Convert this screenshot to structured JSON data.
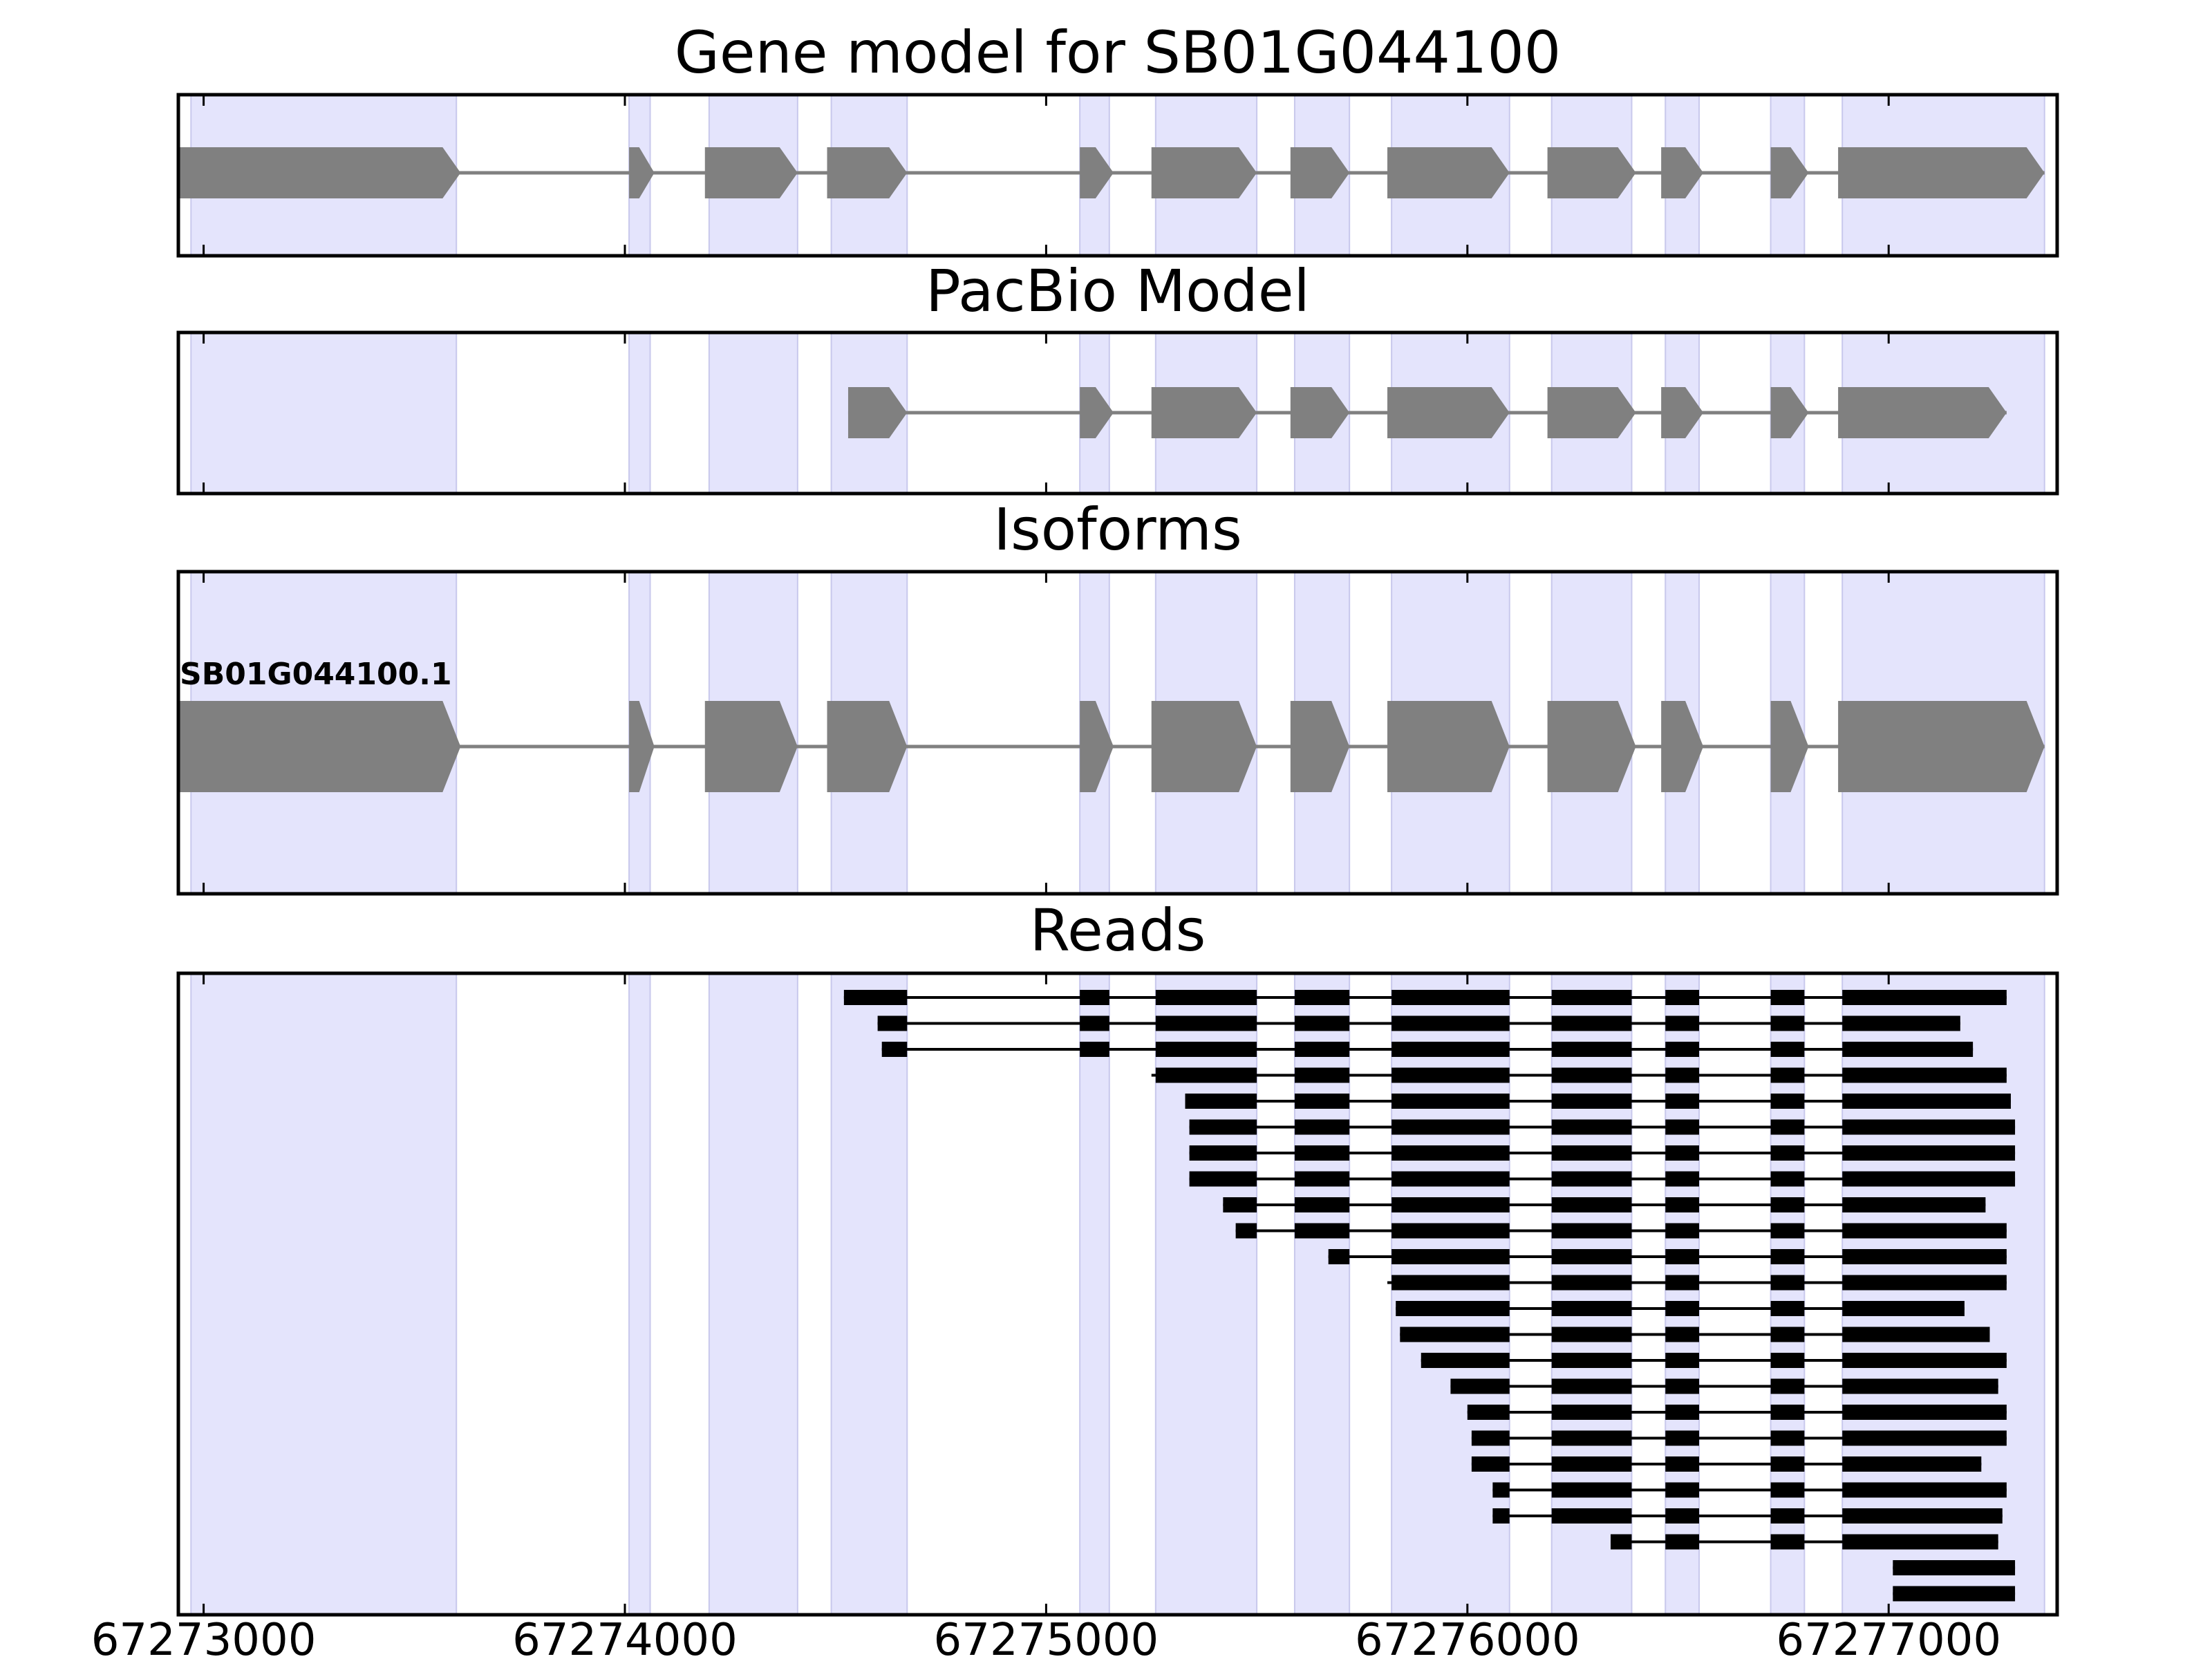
{
  "figure": {
    "x_axis": {
      "xlim": [
        67272940,
        67277400
      ],
      "ticks": [
        67273000,
        67274000,
        67275000,
        67276000,
        67277000
      ],
      "tick_labels": [
        "67273000",
        "67274000",
        "67275000",
        "67276000",
        "67277000"
      ]
    },
    "colors": {
      "exon_shade": "#e4e4fc",
      "exon_shade_edge": "#c8c8ec",
      "gene_model": "#808080",
      "read": "#000000",
      "frame": "#000000"
    },
    "exon_regions": [
      [
        67272970,
        67273600
      ],
      [
        67274010,
        67274060
      ],
      [
        67274200,
        67274410
      ],
      [
        67274490,
        67274670
      ],
      [
        67275080,
        67275150
      ],
      [
        67275260,
        67275500
      ],
      [
        67275590,
        67275720
      ],
      [
        67275820,
        67276100
      ],
      [
        67276200,
        67276390
      ],
      [
        67276470,
        67276550
      ],
      [
        67276720,
        67276800
      ],
      [
        67276890,
        67277370
      ]
    ],
    "panels": [
      {
        "key": "gene_model",
        "title": "Gene model for SB01G044100",
        "label": "",
        "exons": [
          [
            67272940,
            67273610
          ],
          [
            67274010,
            67274070
          ],
          [
            67274190,
            67274410
          ],
          [
            67274480,
            67274670
          ],
          [
            67275080,
            67275160
          ],
          [
            67275250,
            67275500
          ],
          [
            67275580,
            67275720
          ],
          [
            67275810,
            67276100
          ],
          [
            67276190,
            67276400
          ],
          [
            67276460,
            67276560
          ],
          [
            67276720,
            67276810
          ],
          [
            67276880,
            67277370
          ]
        ]
      },
      {
        "key": "pacbio_model",
        "title": "PacBio Model",
        "label": "",
        "exons": [
          [
            67274530,
            67274670
          ],
          [
            67275080,
            67275160
          ],
          [
            67275250,
            67275500
          ],
          [
            67275580,
            67275720
          ],
          [
            67275810,
            67276100
          ],
          [
            67276190,
            67276400
          ],
          [
            67276460,
            67276560
          ],
          [
            67276720,
            67276810
          ],
          [
            67276880,
            67277280
          ]
        ]
      },
      {
        "key": "isoforms",
        "title": "Isoforms",
        "label": "SB01G044100.1",
        "exons": [
          [
            67272940,
            67273610
          ],
          [
            67274010,
            67274070
          ],
          [
            67274190,
            67274410
          ],
          [
            67274480,
            67274670
          ],
          [
            67275080,
            67275160
          ],
          [
            67275250,
            67275500
          ],
          [
            67275580,
            67275720
          ],
          [
            67275810,
            67276100
          ],
          [
            67276190,
            67276400
          ],
          [
            67276460,
            67276560
          ],
          [
            67276720,
            67276810
          ],
          [
            67276880,
            67277370
          ]
        ]
      },
      {
        "key": "reads",
        "title": "Reads",
        "label": ""
      }
    ],
    "reads": [
      {
        "start": 67274520,
        "end": 67277280
      },
      {
        "start": 67274600,
        "end": 67277170
      },
      {
        "start": 67274610,
        "end": 67277200
      },
      {
        "start": 67275250,
        "end": 67277280
      },
      {
        "start": 67275330,
        "end": 67277290
      },
      {
        "start": 67275340,
        "end": 67277300
      },
      {
        "start": 67275340,
        "end": 67277300
      },
      {
        "start": 67275340,
        "end": 67277300
      },
      {
        "start": 67275420,
        "end": 67277230
      },
      {
        "start": 67275450,
        "end": 67277280
      },
      {
        "start": 67275670,
        "end": 67277280
      },
      {
        "start": 67275810,
        "end": 67277280
      },
      {
        "start": 67275830,
        "end": 67277180
      },
      {
        "start": 67275840,
        "end": 67277240
      },
      {
        "start": 67275890,
        "end": 67277280
      },
      {
        "start": 67275960,
        "end": 67277260
      },
      {
        "start": 67276000,
        "end": 67277280
      },
      {
        "start": 67276010,
        "end": 67277280
      },
      {
        "start": 67276010,
        "end": 67277220
      },
      {
        "start": 67276060,
        "end": 67277280
      },
      {
        "start": 67276060,
        "end": 67277270
      },
      {
        "start": 67276340,
        "end": 67277260
      },
      {
        "start": 67277010,
        "end": 67277300
      },
      {
        "start": 67277010,
        "end": 67277300
      }
    ]
  }
}
